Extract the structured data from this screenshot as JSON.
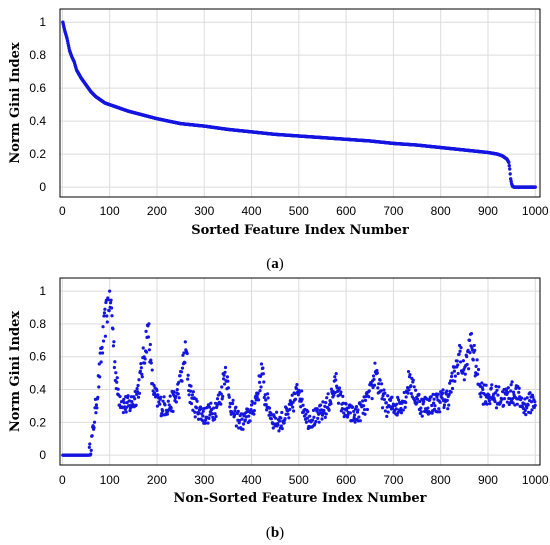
{
  "chart_data": [
    {
      "type": "scatter",
      "panel": "(a)",
      "caption_letter": "a",
      "xlabel": "Sorted Feature Index Number",
      "ylabel": "Norm Gini Index",
      "xlim": [
        -5,
        1010
      ],
      "ylim": [
        -0.06,
        1.08
      ],
      "xticks": [
        0,
        100,
        200,
        300,
        400,
        500,
        600,
        700,
        800,
        900,
        1000
      ],
      "yticks": [
        0,
        0.2,
        0.4,
        0.6,
        0.8,
        1
      ],
      "grid": true,
      "marker_color": "#1515e0",
      "curve": [
        [
          1,
          1.0
        ],
        [
          5,
          0.95
        ],
        [
          10,
          0.9
        ],
        [
          15,
          0.83
        ],
        [
          20,
          0.79
        ],
        [
          25,
          0.76
        ],
        [
          30,
          0.71
        ],
        [
          40,
          0.66
        ],
        [
          50,
          0.62
        ],
        [
          60,
          0.58
        ],
        [
          70,
          0.55
        ],
        [
          80,
          0.53
        ],
        [
          90,
          0.51
        ],
        [
          100,
          0.5
        ],
        [
          120,
          0.48
        ],
        [
          140,
          0.46
        ],
        [
          160,
          0.445
        ],
        [
          180,
          0.43
        ],
        [
          200,
          0.415
        ],
        [
          250,
          0.385
        ],
        [
          300,
          0.37
        ],
        [
          350,
          0.35
        ],
        [
          400,
          0.335
        ],
        [
          450,
          0.32
        ],
        [
          500,
          0.31
        ],
        [
          550,
          0.3
        ],
        [
          600,
          0.29
        ],
        [
          650,
          0.28
        ],
        [
          700,
          0.265
        ],
        [
          750,
          0.255
        ],
        [
          800,
          0.24
        ],
        [
          850,
          0.225
        ],
        [
          900,
          0.21
        ],
        [
          920,
          0.2
        ],
        [
          930,
          0.19
        ],
        [
          935,
          0.18
        ],
        [
          940,
          0.17
        ],
        [
          942,
          0.16
        ],
        [
          944,
          0.15
        ],
        [
          946,
          0.11
        ],
        [
          948,
          0.05
        ],
        [
          950,
          0.02
        ],
        [
          952,
          0.005
        ],
        [
          955,
          0.0
        ],
        [
          1000,
          0.0
        ]
      ]
    },
    {
      "type": "scatter",
      "panel": "(b)",
      "caption_letter": "b",
      "xlabel": "Non-Sorted Feature Index Number",
      "ylabel": "Norm Gini Index",
      "xlim": [
        -5,
        1010
      ],
      "ylim": [
        -0.06,
        1.08
      ],
      "xticks": [
        0,
        100,
        200,
        300,
        400,
        500,
        600,
        700,
        800,
        900,
        1000
      ],
      "yticks": [
        0,
        0.2,
        0.4,
        0.6,
        0.8,
        1
      ],
      "grid": true,
      "marker_color": "#1515e0",
      "envelope": [
        [
          1,
          0.0
        ],
        [
          40,
          0.0
        ],
        [
          55,
          0.0
        ],
        [
          60,
          0.05
        ],
        [
          65,
          0.15
        ],
        [
          70,
          0.28
        ],
        [
          75,
          0.4
        ],
        [
          80,
          0.55
        ],
        [
          85,
          0.68
        ],
        [
          90,
          0.8
        ],
        [
          95,
          0.9
        ],
        [
          100,
          0.97
        ],
        [
          105,
          0.85
        ],
        [
          110,
          0.6
        ],
        [
          115,
          0.42
        ],
        [
          120,
          0.36
        ],
        [
          130,
          0.31
        ],
        [
          140,
          0.3
        ],
        [
          150,
          0.33
        ],
        [
          160,
          0.4
        ],
        [
          170,
          0.55
        ],
        [
          178,
          0.72
        ],
        [
          183,
          0.76
        ],
        [
          188,
          0.5
        ],
        [
          195,
          0.36
        ],
        [
          210,
          0.3
        ],
        [
          225,
          0.3
        ],
        [
          240,
          0.35
        ],
        [
          250,
          0.45
        ],
        [
          258,
          0.6
        ],
        [
          262,
          0.63
        ],
        [
          268,
          0.4
        ],
        [
          280,
          0.3
        ],
        [
          300,
          0.24
        ],
        [
          320,
          0.27
        ],
        [
          335,
          0.35
        ],
        [
          343,
          0.5
        ],
        [
          346,
          0.53
        ],
        [
          352,
          0.35
        ],
        [
          365,
          0.24
        ],
        [
          380,
          0.2
        ],
        [
          400,
          0.26
        ],
        [
          415,
          0.4
        ],
        [
          422,
          0.52
        ],
        [
          428,
          0.36
        ],
        [
          445,
          0.22
        ],
        [
          460,
          0.2
        ],
        [
          480,
          0.26
        ],
        [
          495,
          0.37
        ],
        [
          500,
          0.42
        ],
        [
          506,
          0.33
        ],
        [
          520,
          0.22
        ],
        [
          540,
          0.23
        ],
        [
          560,
          0.3
        ],
        [
          575,
          0.4
        ],
        [
          580,
          0.46
        ],
        [
          586,
          0.35
        ],
        [
          600,
          0.26
        ],
        [
          620,
          0.24
        ],
        [
          640,
          0.3
        ],
        [
          655,
          0.4
        ],
        [
          663,
          0.55
        ],
        [
          668,
          0.42
        ],
        [
          685,
          0.3
        ],
        [
          710,
          0.3
        ],
        [
          725,
          0.35
        ],
        [
          735,
          0.48
        ],
        [
          740,
          0.4
        ],
        [
          760,
          0.3
        ],
        [
          790,
          0.32
        ],
        [
          815,
          0.35
        ],
        [
          825,
          0.45
        ],
        [
          835,
          0.55
        ],
        [
          840,
          0.63
        ],
        [
          848,
          0.5
        ],
        [
          858,
          0.6
        ],
        [
          865,
          0.7
        ],
        [
          870,
          0.6
        ],
        [
          880,
          0.46
        ],
        [
          890,
          0.38
        ],
        [
          910,
          0.36
        ],
        [
          935,
          0.35
        ],
        [
          950,
          0.38
        ],
        [
          960,
          0.37
        ],
        [
          975,
          0.3
        ],
        [
          990,
          0.32
        ],
        [
          1000,
          0.34
        ]
      ]
    }
  ]
}
